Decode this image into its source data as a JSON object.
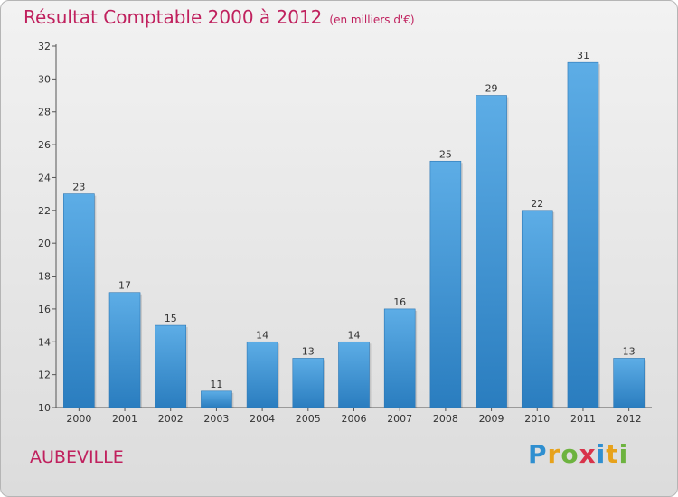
{
  "header": {
    "title": "Résultat Comptable 2000 à 2012",
    "unit": "(en milliers d'€)"
  },
  "footer": {
    "place": "AUBEVILLE",
    "brand": "Proxiti"
  },
  "colors": {
    "title": "#c0215e",
    "bar_top": "#5dade6",
    "bar_bottom": "#2a7dbf",
    "axis": "#555555"
  },
  "chart_data": {
    "type": "bar",
    "title": "Résultat Comptable 2000 à 2012",
    "subtitle": "(en milliers d'€)",
    "categories": [
      "2000",
      "2001",
      "2002",
      "2003",
      "2004",
      "2005",
      "2006",
      "2007",
      "2008",
      "2009",
      "2010",
      "2011",
      "2012"
    ],
    "values": [
      23,
      17,
      15,
      11,
      14,
      13,
      14,
      16,
      25,
      29,
      22,
      31,
      13
    ],
    "xlabel": "",
    "ylabel": "",
    "ylim": [
      10,
      32
    ],
    "yticks": [
      10,
      12,
      14,
      16,
      18,
      20,
      22,
      24,
      26,
      28,
      30,
      32
    ],
    "grid": false,
    "legend": "none"
  }
}
